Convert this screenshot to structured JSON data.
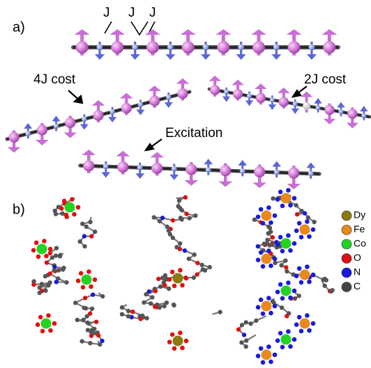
{
  "panel_a": {
    "label": "a)",
    "couplings": [
      "J",
      "J",
      "J"
    ],
    "left_note": "4J cost",
    "right_note": "2J cost",
    "excitation": "Excitation"
  },
  "panel_b": {
    "label": "b)",
    "legend": [
      {
        "name": "Dy",
        "color": "#8a7a10"
      },
      {
        "name": "Fe",
        "color": "#e8891c"
      },
      {
        "name": "Co",
        "color": "#22d422"
      },
      {
        "name": "O",
        "color": "#e01010"
      },
      {
        "name": "N",
        "color": "#1a1adc"
      },
      {
        "name": "C",
        "color": "#444444"
      }
    ]
  }
}
